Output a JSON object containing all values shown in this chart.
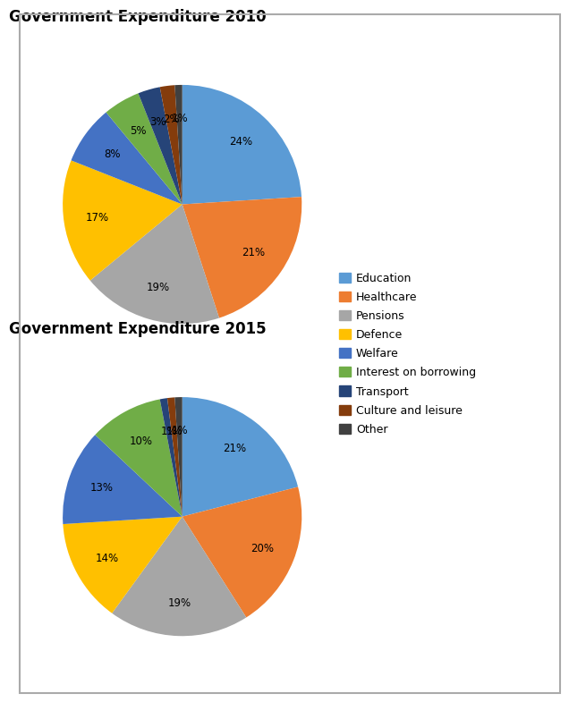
{
  "title_2010": "Government Expenditure 2010",
  "title_2015": "Government Expenditure 2015",
  "labels": [
    "Education",
    "Healthcare",
    "Pensions",
    "Defence",
    "Welfare",
    "Interest on borrowing",
    "Transport",
    "Culture and leisure",
    "Other"
  ],
  "values_2010": [
    24,
    21,
    19,
    17,
    8,
    5,
    3,
    2,
    1
  ],
  "values_2015": [
    21,
    20,
    19,
    14,
    13,
    10,
    1,
    1,
    1
  ],
  "colors_2010": [
    "#5b9bd5",
    "#ed7d31",
    "#a6a6a6",
    "#ffc000",
    "#4472c4",
    "#70ad47",
    "#264478",
    "#843c0c",
    "#404040"
  ],
  "colors_2015": [
    "#5b9bd5",
    "#ed7d31",
    "#a6a6a6",
    "#ffc000",
    "#4472c4",
    "#70ad47",
    "#264478",
    "#843c0c",
    "#404040"
  ],
  "legend_colors": [
    "#5b9bd5",
    "#ed7d31",
    "#a6a6a6",
    "#ffc000",
    "#4472c4",
    "#70ad47",
    "#264478",
    "#843c0c",
    "#404040"
  ],
  "background_color": "#ffffff",
  "title_fontsize": 12,
  "label_fontsize": 8.5
}
